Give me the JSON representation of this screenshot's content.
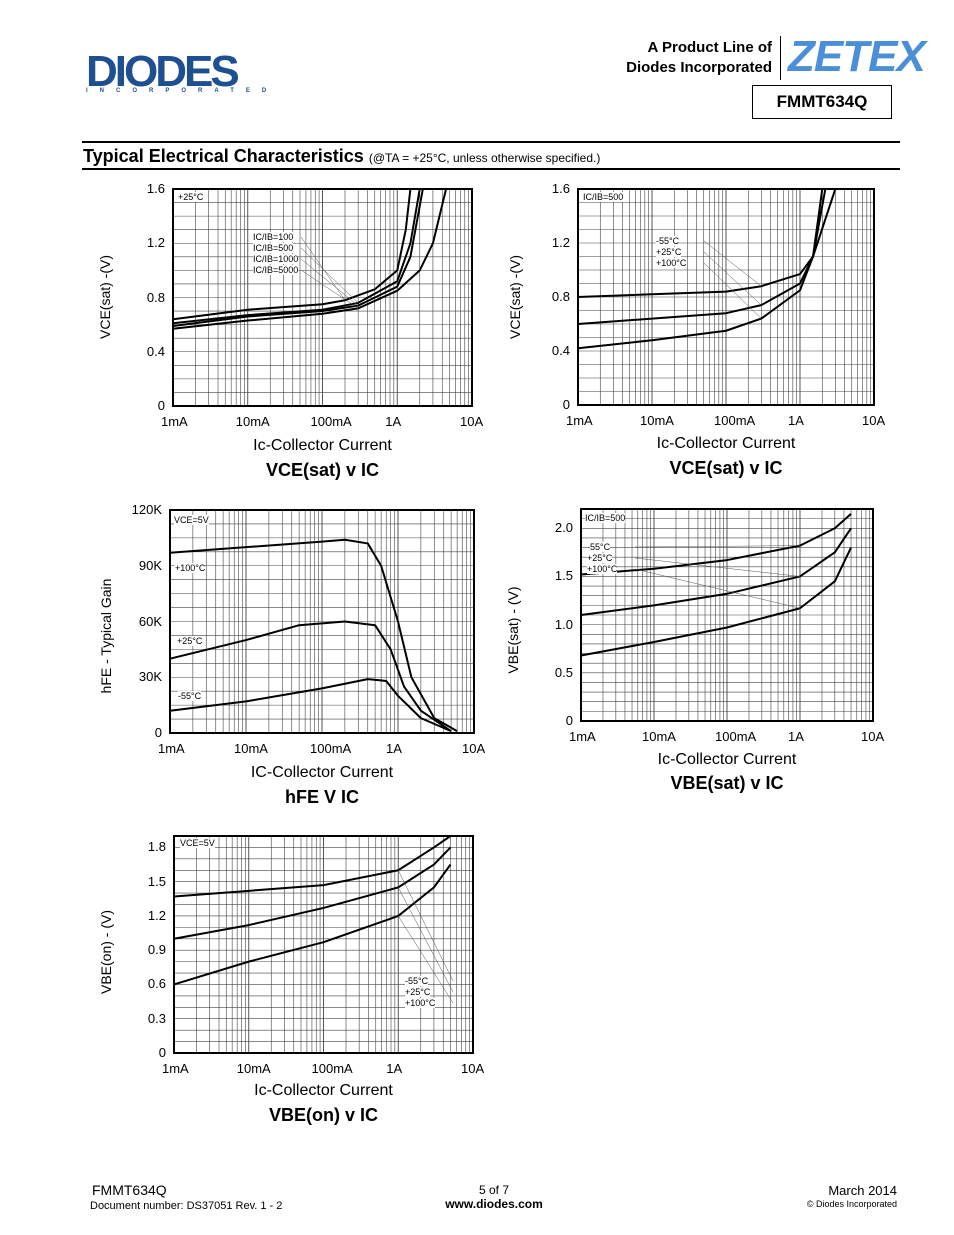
{
  "header": {
    "logo_left": "DIODES",
    "logo_left_sub": "INCORPORATED",
    "product_line_1": "A Product Line of",
    "product_line_2": "Diodes Incorporated",
    "logo_right": "ZETEX",
    "part_number": "FMMT634Q"
  },
  "section": {
    "title": "Typical Electrical Characteristics",
    "condition": "(@TA = +25°C, unless otherwise specified.)"
  },
  "colors": {
    "diodes_blue": "#1d4f91",
    "zetex_blue": "#4a8fd8",
    "curve": "#000000",
    "grid": "#000000"
  },
  "chart_data": [
    {
      "type": "line",
      "title": "VCE(sat) v IC",
      "xlabel": "Ic-Collector Current",
      "ylabel": "VCE(sat) -(V)",
      "xscale": "log",
      "xlim": [
        0.001,
        10
      ],
      "xticks": [
        "1mA",
        "10mA",
        "100mA",
        "1A",
        "10A"
      ],
      "ylim": [
        0,
        1.6
      ],
      "yticks": [
        "0",
        "0.4",
        "0.8",
        "1.2",
        "1.6"
      ],
      "grid": true,
      "annotations": [
        "+25°C"
      ],
      "series": [
        {
          "name": "IC/IB=100",
          "x": [
            0.001,
            0.01,
            0.1,
            0.2,
            0.5,
            1.0,
            1.3,
            1.5
          ],
          "y": [
            0.64,
            0.71,
            0.75,
            0.78,
            0.86,
            1.0,
            1.3,
            1.6
          ]
        },
        {
          "name": "IC/IB=500",
          "x": [
            0.001,
            0.01,
            0.1,
            0.3,
            1.0,
            1.5,
            2.0
          ],
          "y": [
            0.61,
            0.67,
            0.71,
            0.76,
            0.92,
            1.2,
            1.6
          ]
        },
        {
          "name": "IC/IB=1000",
          "x": [
            0.001,
            0.01,
            0.1,
            0.3,
            1.0,
            1.5,
            2.2
          ],
          "y": [
            0.59,
            0.66,
            0.7,
            0.74,
            0.88,
            1.1,
            1.6
          ]
        },
        {
          "name": "IC/IB=5000",
          "x": [
            0.001,
            0.01,
            0.1,
            0.3,
            1.0,
            2.0,
            3.0,
            4.5
          ],
          "y": [
            0.57,
            0.63,
            0.68,
            0.72,
            0.85,
            1.0,
            1.2,
            1.6
          ]
        }
      ]
    },
    {
      "type": "line",
      "title": "VCE(sat) v IC",
      "xlabel": "Ic-Collector Current",
      "ylabel": "VCE(sat) -(V)",
      "xscale": "log",
      "xlim": [
        0.001,
        10
      ],
      "xticks": [
        "1mA",
        "10mA",
        "100mA",
        "1A",
        "10A"
      ],
      "ylim": [
        0,
        1.6
      ],
      "yticks": [
        "0",
        "0.4",
        "0.8",
        "1.2",
        "1.6"
      ],
      "grid": true,
      "annotations": [
        "IC/IB=500"
      ],
      "series": [
        {
          "name": "-55°C",
          "x": [
            0.001,
            0.01,
            0.1,
            0.3,
            1.0,
            1.5,
            2.0
          ],
          "y": [
            0.8,
            0.82,
            0.84,
            0.88,
            0.97,
            1.1,
            1.6
          ]
        },
        {
          "name": "+25°C",
          "x": [
            0.001,
            0.01,
            0.1,
            0.3,
            1.0,
            1.5,
            2.2
          ],
          "y": [
            0.6,
            0.64,
            0.68,
            0.74,
            0.9,
            1.1,
            1.6
          ]
        },
        {
          "name": "+100°C",
          "x": [
            0.001,
            0.01,
            0.1,
            0.3,
            1.0,
            1.5,
            3.0
          ],
          "y": [
            0.42,
            0.48,
            0.55,
            0.64,
            0.85,
            1.1,
            1.6
          ]
        }
      ]
    },
    {
      "type": "line",
      "title": "hFE V IC",
      "xlabel": "IC-Collector Current",
      "ylabel": "hFE - Typical Gain",
      "xscale": "log",
      "xlim": [
        0.001,
        10
      ],
      "xticks": [
        "1mA",
        "10mA",
        "100mA",
        "1A",
        "10A"
      ],
      "ylim": [
        0,
        120000
      ],
      "yticks": [
        "0",
        "30K",
        "60K",
        "90K",
        "120K"
      ],
      "grid": true,
      "annotations": [
        "VCE=5V"
      ],
      "series": [
        {
          "name": "+100°C",
          "x": [
            0.001,
            0.01,
            0.1,
            0.2,
            0.4,
            0.6,
            1.0,
            1.5,
            3.0,
            6.0
          ],
          "y": [
            97000,
            100000,
            103000,
            104000,
            102000,
            90000,
            60000,
            30000,
            8000,
            1000
          ]
        },
        {
          "name": "+25°C",
          "x": [
            0.001,
            0.01,
            0.05,
            0.2,
            0.5,
            0.8,
            1.2,
            2.0,
            5.0
          ],
          "y": [
            40000,
            50000,
            58000,
            60000,
            58000,
            45000,
            25000,
            12000,
            1000
          ]
        },
        {
          "name": "-55°C",
          "x": [
            0.001,
            0.01,
            0.1,
            0.4,
            0.7,
            1.0,
            2.0,
            5.0
          ],
          "y": [
            12000,
            17000,
            24000,
            29000,
            28000,
            20000,
            8000,
            1000
          ]
        }
      ]
    },
    {
      "type": "line",
      "title": "VBE(sat) v IC",
      "xlabel": "Ic-Collector Current",
      "ylabel": "VBE(sat) - (V)",
      "xscale": "log",
      "xlim": [
        0.001,
        10
      ],
      "xticks": [
        "1mA",
        "10mA",
        "100mA",
        "1A",
        "10A"
      ],
      "ylim": [
        0,
        2.2
      ],
      "yticks": [
        "0",
        "0.5",
        "1.0",
        "1.5",
        "2.0"
      ],
      "grid": true,
      "annotations": [
        "IC/IB=500"
      ],
      "series": [
        {
          "name": "-55°C",
          "x": [
            0.001,
            0.01,
            0.1,
            1.0,
            3.0,
            5.0
          ],
          "y": [
            1.52,
            1.58,
            1.67,
            1.82,
            2.0,
            2.15
          ]
        },
        {
          "name": "+25°C",
          "x": [
            0.001,
            0.01,
            0.1,
            1.0,
            3.0,
            5.0
          ],
          "y": [
            1.1,
            1.2,
            1.32,
            1.5,
            1.75,
            2.0
          ]
        },
        {
          "name": "+100°C",
          "x": [
            0.001,
            0.01,
            0.1,
            1.0,
            3.0,
            5.0
          ],
          "y": [
            0.68,
            0.82,
            0.97,
            1.17,
            1.45,
            1.8
          ]
        }
      ]
    },
    {
      "type": "line",
      "title": "VBE(on) v IC",
      "xlabel": "Ic-Collector Current",
      "ylabel": "VBE(on) - (V)",
      "xscale": "log",
      "xlim": [
        0.001,
        10
      ],
      "xticks": [
        "1mA",
        "10mA",
        "100mA",
        "1A",
        "10A"
      ],
      "ylim": [
        0,
        1.9
      ],
      "yticks": [
        "0",
        "0.3",
        "0.6",
        "0.9",
        "1.2",
        "1.5",
        "1.8"
      ],
      "grid": true,
      "annotations": [
        "VCE=5V"
      ],
      "series": [
        {
          "name": "-55°C",
          "x": [
            0.001,
            0.01,
            0.1,
            1.0,
            3.0,
            5.0
          ],
          "y": [
            1.37,
            1.42,
            1.47,
            1.6,
            1.8,
            1.9
          ]
        },
        {
          "name": "+25°C",
          "x": [
            0.001,
            0.01,
            0.1,
            1.0,
            3.0,
            5.0
          ],
          "y": [
            1.0,
            1.12,
            1.27,
            1.45,
            1.65,
            1.8
          ]
        },
        {
          "name": "+100°C",
          "x": [
            0.001,
            0.01,
            0.1,
            1.0,
            3.0,
            5.0
          ],
          "y": [
            0.6,
            0.8,
            0.97,
            1.2,
            1.45,
            1.65
          ]
        }
      ]
    }
  ],
  "footer": {
    "part": "FMMT634Q",
    "docnum": "Document number: DS37051 Rev. 1 - 2",
    "page": "5 of 7",
    "url": "www.diodes.com",
    "date": "March 2014",
    "copyright": "© Diodes Incorporated"
  }
}
